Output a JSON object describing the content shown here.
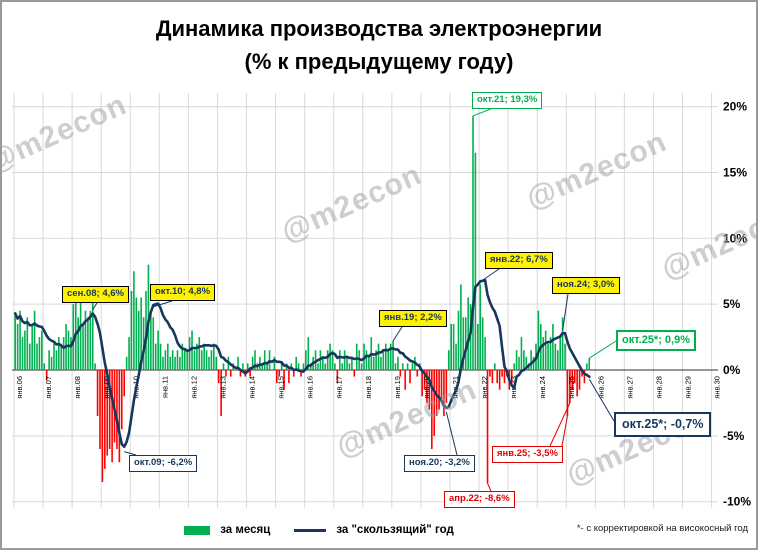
{
  "title": {
    "line1": "Динамика производства электроэнергии",
    "line2": "(% к предыдущему году)"
  },
  "watermark": "@m2econ",
  "legend": {
    "bar_label": "за месяц",
    "line_label": "за \"скользящий\" год",
    "footnote": "*- с корректировкой на високосный год"
  },
  "colors": {
    "bar_positive": "#00b050",
    "bar_negative": "#ff0000",
    "line": "#17375e",
    "grid": "#d9d9d9",
    "axis": "#595959",
    "callout_yellow": "#fff200",
    "callout_green": "#00b050",
    "callout_red": "#e00000",
    "callout_navy": "#17375e"
  },
  "chart_data": {
    "type": "bar+line",
    "start_month": "2006-01",
    "x_axis_end": "2030-01",
    "x_tick_labels": [
      "янв.06",
      "янв.07",
      "янв.08",
      "янв.09",
      "янв.10",
      "янв.11",
      "янв.12",
      "янв.13",
      "янв.14",
      "янв.15",
      "янв.16",
      "янв.17",
      "янв.18",
      "янв.19",
      "янв.20",
      "янв.21",
      "янв.22",
      "янв.23",
      "янв.24",
      "янв.25",
      "янв.26",
      "янв.27",
      "янв.28",
      "янв.29",
      "янв.30"
    ],
    "y_ticks": [
      {
        "value": 20,
        "label": "20%"
      },
      {
        "value": 15,
        "label": "15%"
      },
      {
        "value": 10,
        "label": "10%"
      },
      {
        "value": 5,
        "label": "5%"
      },
      {
        "value": 0,
        "label": "0%"
      },
      {
        "value": -5,
        "label": "-5%"
      },
      {
        "value": -10,
        "label": "-10%"
      }
    ],
    "ylim": [
      -10.5,
      21
    ],
    "series": [
      {
        "name": "за месяц",
        "type": "bar",
        "values": [
          4.3,
          3.5,
          4.5,
          2.5,
          3.0,
          4.0,
          2.0,
          3.5,
          4.5,
          2.0,
          2.5,
          3.0,
          0.5,
          -0.8,
          1.5,
          1.0,
          2.0,
          1.5,
          2.5,
          2.0,
          2.5,
          3.5,
          3.0,
          2.5,
          5.0,
          6.0,
          4.0,
          5.5,
          3.5,
          4.5,
          4.0,
          4.5,
          5.5,
          0.5,
          -3.5,
          -6.0,
          -8.5,
          -7.5,
          -6.5,
          -6.0,
          -7.0,
          -5.5,
          -6.0,
          -7.0,
          -4.5,
          -2.0,
          1.0,
          2.5,
          6.0,
          7.5,
          5.5,
          4.5,
          5.5,
          4.0,
          6.0,
          8.0,
          4.5,
          4.0,
          2.0,
          3.0,
          2.0,
          1.0,
          1.5,
          2.0,
          1.0,
          1.5,
          1.0,
          1.5,
          1.0,
          2.0,
          1.5,
          1.5,
          2.5,
          3.0,
          1.5,
          2.0,
          2.5,
          1.5,
          2.0,
          1.5,
          1.0,
          1.5,
          2.0,
          1.0,
          -1.0,
          -3.5,
          0.5,
          -0.5,
          1.0,
          -0.5,
          0.5,
          0.0,
          1.0,
          -0.5,
          0.5,
          -0.5,
          0.5,
          -0.5,
          1.0,
          1.5,
          0.5,
          1.0,
          0.5,
          1.5,
          0.5,
          1.5,
          0.0,
          1.0,
          -1.0,
          -0.5,
          0.5,
          -1.5,
          0.5,
          -1.0,
          0.5,
          -0.5,
          1.0,
          0.5,
          -0.5,
          0.5,
          1.5,
          2.5,
          0.5,
          1.0,
          1.5,
          0.5,
          1.5,
          1.0,
          0.5,
          1.5,
          2.0,
          1.5,
          0.5,
          -1.0,
          1.5,
          0.5,
          1.5,
          1.0,
          0.5,
          1.0,
          -0.5,
          2.0,
          1.5,
          0.5,
          2.0,
          1.5,
          1.0,
          2.5,
          1.0,
          1.5,
          2.0,
          1.0,
          1.5,
          2.0,
          1.5,
          2.0,
          2.2,
          0.5,
          1.0,
          -0.5,
          0.5,
          -1.5,
          0.5,
          -1.0,
          0.5,
          1.0,
          -0.5,
          0.5,
          -2.0,
          -1.5,
          -2.5,
          -3.0,
          -6.0,
          -5.0,
          -3.5,
          -3.0,
          -2.5,
          -3.5,
          -2.5,
          1.5,
          3.5,
          3.5,
          2.0,
          4.5,
          6.5,
          4.0,
          4.0,
          5.5,
          5.0,
          19.3,
          16.5,
          3.5,
          6.5,
          4.0,
          2.5,
          -8.6,
          -0.5,
          -1.0,
          0.5,
          -1.0,
          -1.5,
          -0.5,
          -1.0,
          -0.5,
          -1.5,
          -1.0,
          0.5,
          1.5,
          1.0,
          2.5,
          1.5,
          1.0,
          0.5,
          1.5,
          1.0,
          2.0,
          4.5,
          3.5,
          2.5,
          3.0,
          2.0,
          2.5,
          3.5,
          2.0,
          1.5,
          2.5,
          4.0,
          2.0,
          -3.5,
          -2.5,
          -1.5,
          -1.0,
          -2.0,
          -1.5,
          -0.5,
          -1.0,
          0.5,
          0.9
        ]
      },
      {
        "name": "за \"скользящий\" год",
        "type": "line",
        "derive": "rolling_12_month_mean_of_bar_series"
      }
    ],
    "annotations": [
      {
        "id": "sep08",
        "label": "сен.08; 4,6%",
        "style": "yellow",
        "series": "rolling",
        "idx": 32,
        "value": 4.6
      },
      {
        "id": "okt10",
        "label": "окт.10; 4,8%",
        "style": "yellow",
        "series": "rolling",
        "idx": 57,
        "value": 4.8
      },
      {
        "id": "jan19",
        "label": "янв.19; 2,2%",
        "style": "yellow",
        "series": "rolling",
        "idx": 156,
        "value": 2.2
      },
      {
        "id": "jan22",
        "label": "янв.22; 6,7%",
        "style": "yellow",
        "series": "rolling",
        "idx": 192,
        "value": 6.7
      },
      {
        "id": "nov24",
        "label": "ноя.24; 3,0%",
        "style": "yellow",
        "series": "rolling",
        "idx": 226,
        "value": 3.0
      },
      {
        "id": "okt21",
        "label": "окт.21; 19,3%",
        "style": "green",
        "series": "month",
        "idx": 189,
        "value": 19.3
      },
      {
        "id": "okt25m",
        "label": "окт.25*; 0,9%",
        "style": "green",
        "series": "month",
        "idx": 237,
        "value": 0.9
      },
      {
        "id": "okt25r",
        "label": "окт.25*; -0,7%",
        "style": "navy",
        "series": "rolling",
        "idx": 237,
        "value": -0.7
      },
      {
        "id": "okt09",
        "label": "окт.09; -6,2%",
        "style": "navy",
        "series": "rolling",
        "idx": 45,
        "value": -6.2
      },
      {
        "id": "nov20",
        "label": "ноя.20; -3,2%",
        "style": "navy",
        "series": "rolling",
        "idx": 178,
        "value": -3.2
      },
      {
        "id": "jan25",
        "label": "янв.25; -3,5%",
        "style": "red",
        "series": "month",
        "idx": 228,
        "value": -3.5,
        "extra": [
          {
            "idx": 229,
            "value": -2.5
          }
        ]
      },
      {
        "id": "apr22",
        "label": "апр.22; -8,6%",
        "style": "red",
        "series": "month",
        "idx": 195,
        "value": -8.6
      }
    ]
  }
}
